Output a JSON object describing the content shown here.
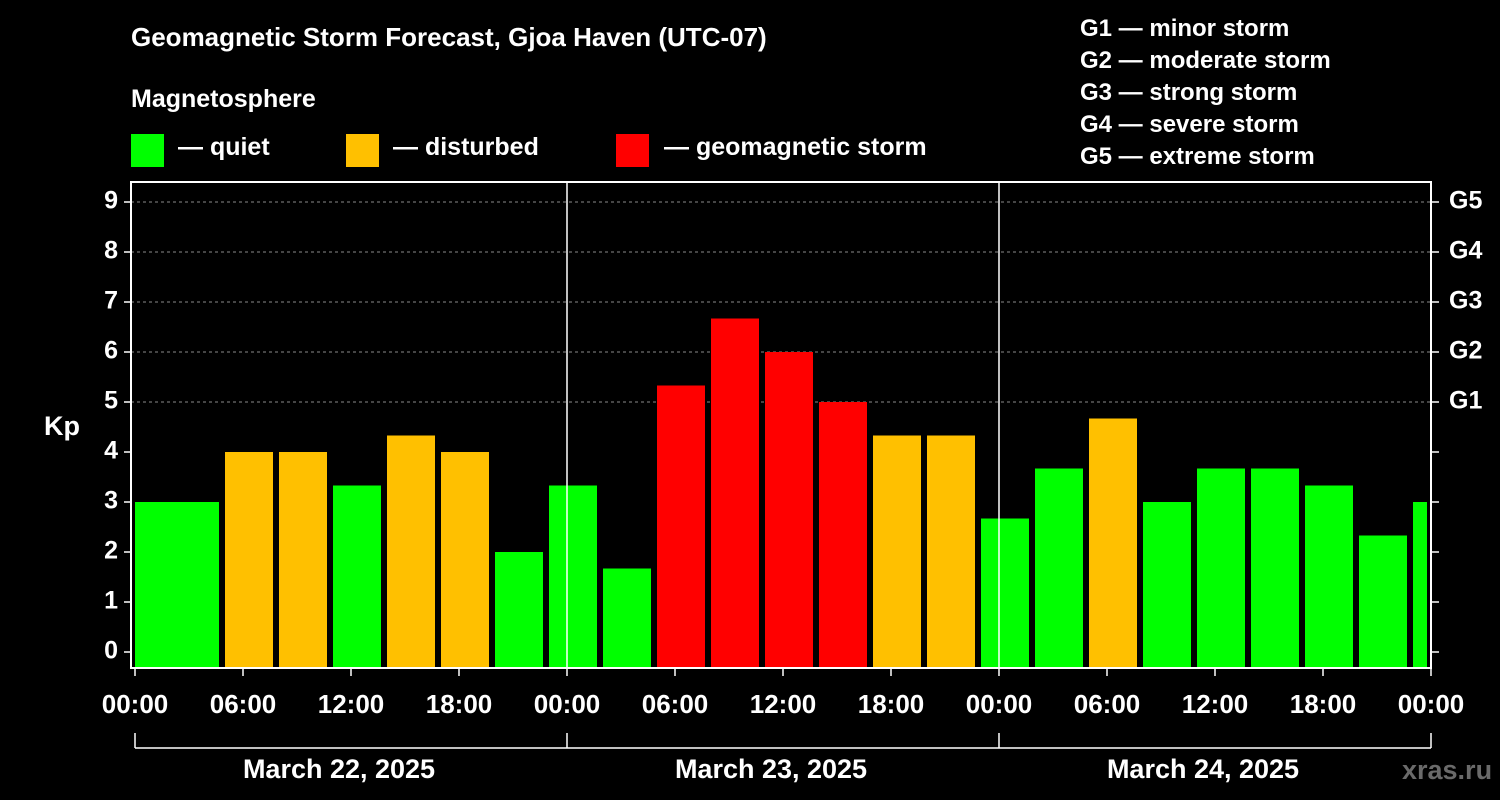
{
  "title": "Geomagnetic Storm Forecast, Gjoa Haven (UTC-07)",
  "legend": {
    "heading": "Magnetosphere",
    "items": [
      {
        "label": "— quiet",
        "color": "#00ff00"
      },
      {
        "label": "— disturbed",
        "color": "#ffc000"
      },
      {
        "label": "— geomagnetic storm",
        "color": "#ff0000"
      }
    ]
  },
  "storm_scale": [
    {
      "text": "G1 — minor storm"
    },
    {
      "text": "G2 — moderate storm"
    },
    {
      "text": "G3 — strong storm"
    },
    {
      "text": "G4 — severe storm"
    },
    {
      "text": "G5 — extreme storm"
    }
  ],
  "watermark": "xras.ru",
  "chart_data": {
    "type": "bar",
    "title": "Geomagnetic Storm Forecast, Gjoa Haven (UTC-07)",
    "ylabel": "Kp",
    "xlabel": "",
    "ylim": [
      0,
      9
    ],
    "yticks": [
      "0",
      "1",
      "2",
      "3",
      "4",
      "5",
      "6",
      "7",
      "8",
      "9"
    ],
    "right_ticks": [
      {
        "value": 5,
        "label": "G1"
      },
      {
        "value": 6,
        "label": "G2"
      },
      {
        "value": 7,
        "label": "G3"
      },
      {
        "value": 8,
        "label": "G4"
      },
      {
        "value": 9,
        "label": "G5"
      }
    ],
    "x_ticks_hours": [
      0,
      6,
      12,
      18,
      24,
      30,
      36,
      42,
      48,
      54,
      60,
      66,
      72
    ],
    "x_tick_labels": [
      "00:00",
      "06:00",
      "12:00",
      "18:00",
      "00:00",
      "06:00",
      "12:00",
      "18:00",
      "00:00",
      "06:00",
      "12:00",
      "18:00",
      "00:00"
    ],
    "dates": [
      "March 22, 2025",
      "March 23, 2025",
      "March 24, 2025"
    ],
    "day_boundaries_hours": [
      24,
      48
    ],
    "x_range_hours": [
      0,
      72
    ],
    "bars": [
      {
        "start_hour": 0,
        "kp": 3.0,
        "level": "quiet"
      },
      {
        "start_hour": 2,
        "kp": 3.0,
        "level": "quiet"
      },
      {
        "start_hour": 5,
        "kp": 4.0,
        "level": "disturbed"
      },
      {
        "start_hour": 8,
        "kp": 4.0,
        "level": "disturbed"
      },
      {
        "start_hour": 11,
        "kp": 3.33,
        "level": "quiet"
      },
      {
        "start_hour": 14,
        "kp": 4.33,
        "level": "disturbed"
      },
      {
        "start_hour": 17,
        "kp": 4.0,
        "level": "disturbed"
      },
      {
        "start_hour": 20,
        "kp": 2.0,
        "level": "quiet"
      },
      {
        "start_hour": 23,
        "kp": 3.33,
        "level": "quiet"
      },
      {
        "start_hour": 26,
        "kp": 1.67,
        "level": "quiet"
      },
      {
        "start_hour": 29,
        "kp": 5.33,
        "level": "storm"
      },
      {
        "start_hour": 32,
        "kp": 6.67,
        "level": "storm"
      },
      {
        "start_hour": 35,
        "kp": 6.0,
        "level": "storm"
      },
      {
        "start_hour": 38,
        "kp": 5.0,
        "level": "storm"
      },
      {
        "start_hour": 41,
        "kp": 4.33,
        "level": "disturbed"
      },
      {
        "start_hour": 44,
        "kp": 4.33,
        "level": "disturbed"
      },
      {
        "start_hour": 47,
        "kp": 2.67,
        "level": "quiet"
      },
      {
        "start_hour": 50,
        "kp": 3.67,
        "level": "quiet"
      },
      {
        "start_hour": 53,
        "kp": 4.67,
        "level": "disturbed"
      },
      {
        "start_hour": 56,
        "kp": 3.0,
        "level": "quiet"
      },
      {
        "start_hour": 59,
        "kp": 3.67,
        "level": "quiet"
      },
      {
        "start_hour": 62,
        "kp": 3.67,
        "level": "quiet"
      },
      {
        "start_hour": 65,
        "kp": 3.33,
        "level": "quiet"
      },
      {
        "start_hour": 68,
        "kp": 2.33,
        "level": "quiet"
      },
      {
        "start_hour": 71,
        "kp": 3.0,
        "level": "quiet"
      }
    ],
    "colors": {
      "quiet": "#00ff00",
      "disturbed": "#ffc000",
      "storm": "#ff0000"
    }
  }
}
